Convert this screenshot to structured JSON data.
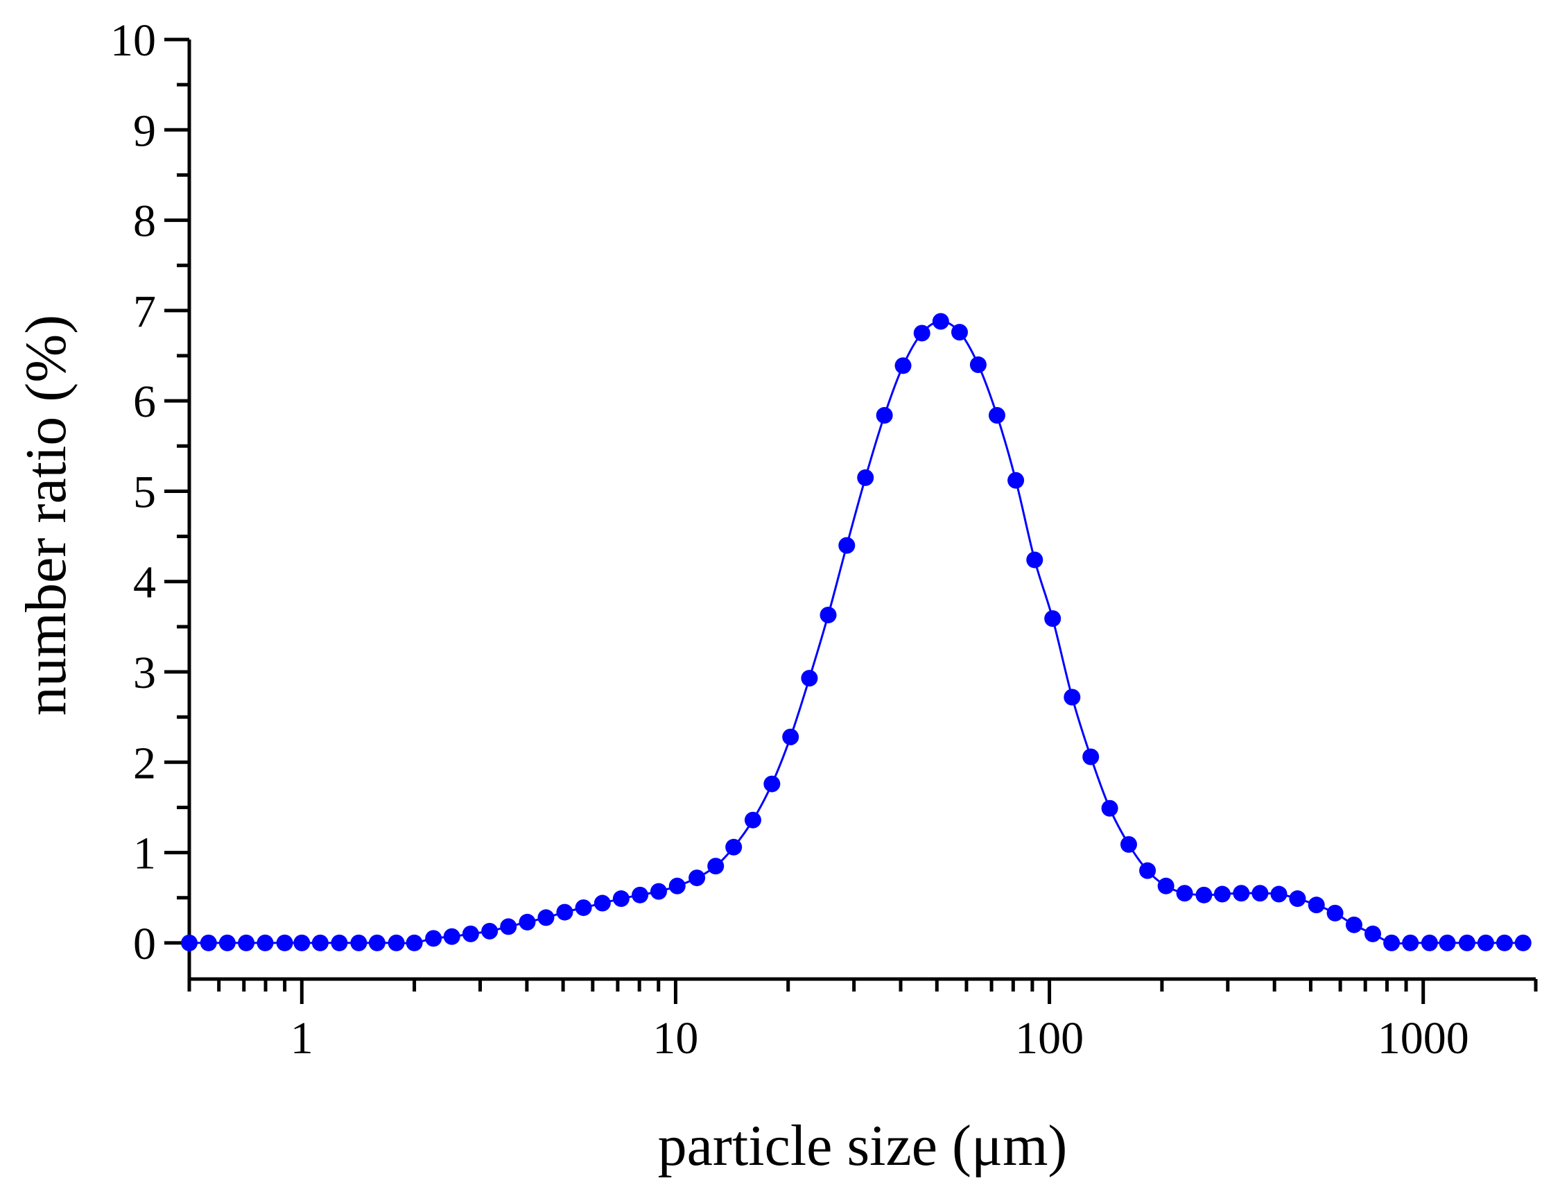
{
  "chart_data": {
    "type": "scatter",
    "xscale": "log",
    "xlabel": "particle size (μm)",
    "ylabel": "number ratio (%)",
    "xlim": [
      0.5,
      2000
    ],
    "ylim": [
      -0.4,
      10
    ],
    "xticks": [
      1,
      10,
      100,
      1000
    ],
    "xtick_labels": [
      "1",
      "10",
      "100",
      "1000"
    ],
    "yticks": [
      0,
      1,
      2,
      3,
      4,
      5,
      6,
      7,
      8,
      9,
      10
    ],
    "ytick_labels": [
      "0",
      "1",
      "2",
      "3",
      "4",
      "5",
      "6",
      "7",
      "8",
      "9",
      "10"
    ],
    "grid": false,
    "series": [
      {
        "color": "#0000ff",
        "marker": "circle",
        "line": true,
        "x": [
          0.5,
          0.563,
          0.632,
          0.71,
          0.798,
          0.9,
          1.0,
          1.12,
          1.26,
          1.42,
          1.59,
          1.79,
          2.0,
          2.25,
          2.52,
          2.83,
          3.18,
          3.57,
          4.01,
          4.5,
          5.05,
          5.67,
          6.37,
          7.15,
          8.03,
          9.01,
          10.1,
          11.4,
          12.8,
          14.3,
          16.1,
          18.1,
          20.3,
          22.8,
          25.6,
          28.7,
          32.2,
          36.2,
          40.6,
          45.6,
          51.2,
          57.5,
          64.5,
          72.4,
          81.3,
          91.3,
          102,
          115,
          129,
          145,
          163,
          183,
          205,
          230,
          259,
          290,
          326,
          366,
          411,
          461,
          518,
          581,
          653,
          733,
          823,
          924,
          1040,
          1160,
          1310,
          1470,
          1650,
          1850
        ],
        "y": [
          0,
          0,
          0,
          0,
          0,
          0,
          0,
          0,
          0,
          0,
          0,
          0,
          0,
          0.05,
          0.07,
          0.1,
          0.13,
          0.18,
          0.23,
          0.28,
          0.34,
          0.39,
          0.44,
          0.49,
          0.53,
          0.57,
          0.63,
          0.72,
          0.85,
          1.06,
          1.36,
          1.76,
          2.28,
          2.93,
          3.63,
          4.4,
          5.15,
          5.84,
          6.39,
          6.75,
          6.88,
          6.76,
          6.4,
          5.84,
          5.12,
          4.24,
          3.59,
          2.72,
          2.06,
          1.49,
          1.09,
          0.8,
          0.63,
          0.55,
          0.53,
          0.54,
          0.55,
          0.55,
          0.54,
          0.49,
          0.42,
          0.33,
          0.2,
          0.1,
          0,
          0,
          0,
          0,
          0,
          0,
          0,
          0
        ]
      }
    ]
  }
}
